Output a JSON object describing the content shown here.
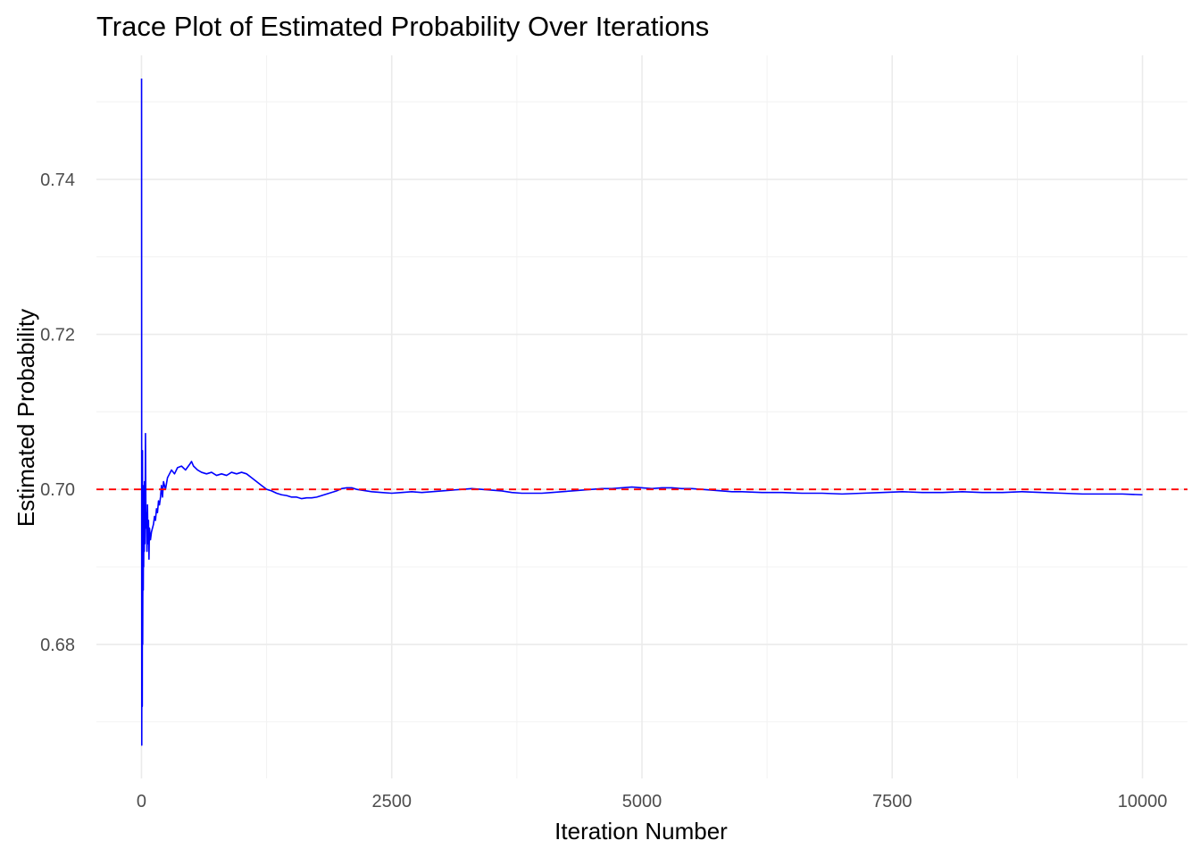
{
  "chart_data": {
    "type": "line",
    "title": "Trace Plot of Estimated Probability Over Iterations",
    "xlabel": "Iteration Number",
    "ylabel": "Estimated Probability",
    "xlim": [
      -450,
      10450
    ],
    "ylim": [
      0.6627,
      0.756
    ],
    "x_ticks": [
      0,
      2500,
      5000,
      7500,
      10000
    ],
    "x_tick_labels": [
      "0",
      "2500",
      "5000",
      "7500",
      "10000"
    ],
    "y_ticks": [
      0.68,
      0.7,
      0.72,
      0.74
    ],
    "y_tick_labels": [
      "0.68",
      "0.70",
      "0.72",
      "0.74"
    ],
    "grid": true,
    "legend": "none",
    "reference_line": {
      "y": 0.7,
      "color": "#ff0000",
      "style": "dashed"
    },
    "series": [
      {
        "color": "#0000ff",
        "x": [
          1,
          3,
          5,
          8,
          10,
          12,
          15,
          18,
          20,
          22,
          25,
          28,
          30,
          35,
          40,
          45,
          50,
          55,
          60,
          65,
          70,
          75,
          80,
          90,
          100,
          110,
          120,
          130,
          140,
          150,
          160,
          170,
          180,
          190,
          200,
          210,
          220,
          240,
          260,
          280,
          300,
          330,
          360,
          400,
          440,
          480,
          500,
          520,
          560,
          600,
          650,
          700,
          750,
          800,
          850,
          900,
          950,
          1000,
          1050,
          1100,
          1150,
          1200,
          1250,
          1300,
          1350,
          1400,
          1450,
          1500,
          1550,
          1600,
          1650,
          1700,
          1750,
          1800,
          1850,
          1900,
          1950,
          2000,
          2050,
          2100,
          2150,
          2200,
          2250,
          2300,
          2400,
          2500,
          2600,
          2700,
          2800,
          2900,
          3000,
          3100,
          3200,
          3300,
          3400,
          3500,
          3600,
          3700,
          3800,
          3900,
          4000,
          4100,
          4200,
          4300,
          4400,
          4500,
          4600,
          4700,
          4800,
          4900,
          5000,
          5100,
          5200,
          5300,
          5400,
          5500,
          5600,
          5700,
          5800,
          5900,
          6000,
          6200,
          6400,
          6600,
          6800,
          7000,
          7200,
          7400,
          7600,
          7800,
          8000,
          8200,
          8400,
          8600,
          8800,
          9000,
          9200,
          9400,
          9600,
          9800,
          10000
        ],
        "values": [
          0.753,
          0.667,
          0.7,
          0.672,
          0.705,
          0.68,
          0.695,
          0.687,
          0.695,
          0.69,
          0.7005,
          0.692,
          0.701,
          0.693,
          0.7072,
          0.695,
          0.697,
          0.692,
          0.698,
          0.693,
          0.696,
          0.691,
          0.695,
          0.6935,
          0.6945,
          0.695,
          0.6955,
          0.6965,
          0.696,
          0.6975,
          0.697,
          0.6985,
          0.698,
          0.699,
          0.7005,
          0.699,
          0.701,
          0.7,
          0.7015,
          0.702,
          0.7025,
          0.702,
          0.7028,
          0.703,
          0.7025,
          0.7032,
          0.7036,
          0.703,
          0.7025,
          0.7022,
          0.702,
          0.7022,
          0.7018,
          0.702,
          0.7018,
          0.7022,
          0.702,
          0.7022,
          0.702,
          0.7015,
          0.701,
          0.7005,
          0.7,
          0.6998,
          0.6995,
          0.6993,
          0.6992,
          0.699,
          0.699,
          0.6988,
          0.6989,
          0.6989,
          0.699,
          0.6992,
          0.6994,
          0.6996,
          0.6998,
          0.7001,
          0.7002,
          0.7002,
          0.7,
          0.6999,
          0.6998,
          0.6997,
          0.6996,
          0.6995,
          0.6996,
          0.6997,
          0.6996,
          0.6997,
          0.6998,
          0.6999,
          0.7,
          0.7001,
          0.7,
          0.6999,
          0.6998,
          0.6996,
          0.6995,
          0.6995,
          0.6995,
          0.6996,
          0.6997,
          0.6998,
          0.6999,
          0.7,
          0.7001,
          0.7001,
          0.7002,
          0.7003,
          0.7002,
          0.7001,
          0.7002,
          0.7002,
          0.7001,
          0.7001,
          0.7,
          0.6999,
          0.6998,
          0.6997,
          0.6997,
          0.6996,
          0.6996,
          0.6995,
          0.6995,
          0.6994,
          0.6995,
          0.6996,
          0.6997,
          0.6996,
          0.6996,
          0.6997,
          0.6996,
          0.6996,
          0.6997,
          0.6996,
          0.6995,
          0.6994,
          0.6994,
          0.6994,
          0.6993
        ]
      }
    ]
  }
}
